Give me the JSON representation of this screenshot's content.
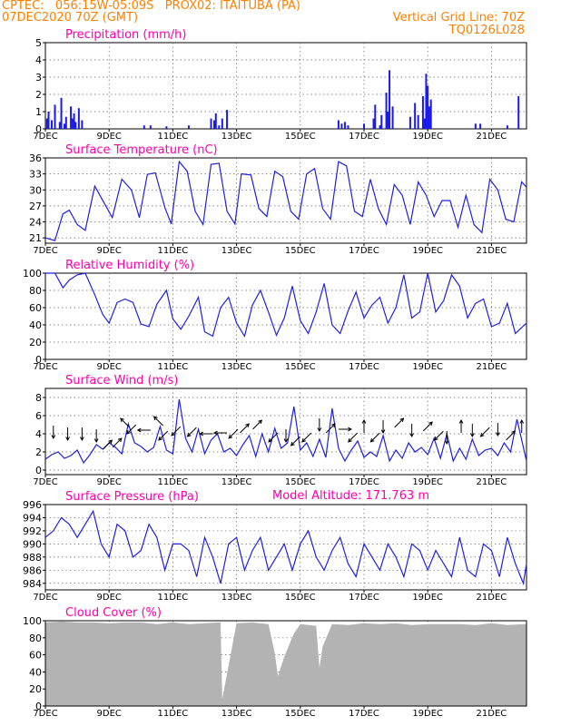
{
  "header": {
    "line1_left": "CPTEC:   056:15W-05:09S   PROX02: ITAITUBA (PA)",
    "line2_left": "07DEC2020 70Z (GMT)",
    "line2_right": "Vertical Grid Line: 70Z",
    "line3_right": "TQ0126L028",
    "model_altitude": "Model Altitude: 171.763 m"
  },
  "colors": {
    "header": "#ff8000",
    "title": "#ff00aa",
    "line": "#2020dd",
    "bars": "#1a1aee",
    "cloud": "#b3b3b3"
  },
  "chart_data": [
    {
      "id": "precip",
      "type": "bar",
      "title": "Precipitation (mm/h)",
      "ylim": [
        0,
        5
      ],
      "yticks": [
        0,
        1,
        2,
        3,
        4,
        5
      ],
      "xticks": [
        "7DEC",
        "9DEC",
        "11DEC",
        "13DEC",
        "15DEC",
        "17DEC",
        "19DEC",
        "21DEC"
      ],
      "xtick_days": [
        7,
        9,
        11,
        13,
        15,
        17,
        19,
        21
      ],
      "xlim_days": [
        7,
        22.1
      ],
      "x_days": [
        7.05,
        7.1,
        7.2,
        7.3,
        7.45,
        7.5,
        7.6,
        7.65,
        7.8,
        7.85,
        7.9,
        7.95,
        8.05,
        8.15,
        10.1,
        10.3,
        10.8,
        11.5,
        12.2,
        12.3,
        12.35,
        12.45,
        12.55,
        12.7,
        16.2,
        16.3,
        16.4,
        16.5,
        17.0,
        17.3,
        17.35,
        17.5,
        17.55,
        17.7,
        17.75,
        17.8,
        17.9,
        18.45,
        18.6,
        18.7,
        18.85,
        18.9,
        18.95,
        19.0,
        19.05,
        19.1,
        20.5,
        20.65,
        21.5,
        21.85
      ],
      "values": [
        0.6,
        1.0,
        0.5,
        1.4,
        0.4,
        1.8,
        0.3,
        0.7,
        1.3,
        0.6,
        0.9,
        0.4,
        1.2,
        0.5,
        0.2,
        0.2,
        0.15,
        0.2,
        0.6,
        0.5,
        0.9,
        0.2,
        0.6,
        1.1,
        0.5,
        0.3,
        0.4,
        0.2,
        0.3,
        0.6,
        1.4,
        0.2,
        0.8,
        2.1,
        1.0,
        3.4,
        1.3,
        0.7,
        1.5,
        0.8,
        1.9,
        0.6,
        3.2,
        2.5,
        1.3,
        1.7,
        0.3,
        0.3,
        0.2,
        1.9
      ]
    },
    {
      "id": "temp",
      "type": "line",
      "title": "Surface Temperature (nC)",
      "ylim": [
        20,
        36
      ],
      "yticks": [
        21,
        24,
        27,
        30,
        33,
        36
      ],
      "xticks": [
        "7DEC",
        "9DEC",
        "11DEC",
        "13DEC",
        "15DEC",
        "17DEC",
        "19DEC",
        "21DEC"
      ],
      "xtick_days": [
        7,
        9,
        11,
        13,
        15,
        17,
        19,
        21
      ],
      "xlim_days": [
        7,
        22.1
      ],
      "x_days": [
        7.0,
        7.3,
        7.55,
        7.75,
        8.0,
        8.25,
        8.55,
        8.85,
        9.1,
        9.4,
        9.7,
        9.95,
        10.2,
        10.45,
        10.75,
        10.95,
        11.2,
        11.45,
        11.7,
        11.95,
        12.2,
        12.45,
        12.7,
        12.95,
        13.15,
        13.45,
        13.7,
        13.95,
        14.2,
        14.45,
        14.7,
        14.95,
        15.2,
        15.45,
        15.7,
        15.95,
        16.2,
        16.45,
        16.7,
        16.95,
        17.2,
        17.45,
        17.7,
        17.95,
        18.2,
        18.45,
        18.7,
        18.95,
        19.2,
        19.45,
        19.7,
        19.95,
        20.2,
        20.45,
        20.7,
        20.95,
        21.2,
        21.45,
        21.7,
        21.95,
        22.1
      ],
      "values": [
        21.0,
        20.5,
        25.5,
        26.2,
        23.5,
        22.4,
        30.7,
        27.5,
        24.8,
        32.0,
        30.0,
        24.8,
        32.9,
        33.2,
        26.7,
        23.6,
        35.3,
        33.5,
        26.0,
        23.5,
        34.8,
        35.0,
        26.0,
        23.6,
        33.0,
        32.8,
        26.5,
        25.0,
        33.5,
        32.5,
        26.0,
        24.5,
        33.0,
        34.0,
        26.5,
        24.5,
        35.3,
        34.5,
        26.0,
        25.0,
        32.0,
        26.5,
        23.5,
        31.0,
        29.0,
        23.5,
        31.5,
        29.0,
        25.0,
        28.0,
        28.0,
        23.0,
        29.0,
        23.5,
        22.0,
        32.0,
        30.0,
        24.5,
        24.0,
        31.5,
        30.5
      ]
    },
    {
      "id": "rh",
      "type": "line",
      "title": "Relative Humidity (%)",
      "ylim": [
        0,
        100
      ],
      "yticks": [
        0,
        20,
        40,
        60,
        80,
        100
      ],
      "xticks": [
        "7DEC",
        "9DEC",
        "11DEC",
        "13DEC",
        "15DEC",
        "17DEC",
        "19DEC",
        "21DEC"
      ],
      "xtick_days": [
        7,
        9,
        11,
        13,
        15,
        17,
        19,
        21
      ],
      "xlim_days": [
        7,
        22.1
      ],
      "x_days": [
        7.0,
        7.3,
        7.55,
        7.75,
        8.0,
        8.25,
        8.55,
        8.8,
        9.0,
        9.25,
        9.5,
        9.75,
        10.0,
        10.25,
        10.5,
        10.8,
        11.0,
        11.25,
        11.5,
        11.8,
        12.0,
        12.25,
        12.5,
        12.75,
        13.0,
        13.25,
        13.5,
        13.75,
        14.0,
        14.25,
        14.5,
        14.75,
        15.0,
        15.25,
        15.5,
        15.75,
        16.0,
        16.25,
        16.5,
        16.75,
        17.0,
        17.25,
        17.5,
        17.75,
        18.0,
        18.25,
        18.5,
        18.75,
        19.0,
        19.25,
        19.5,
        19.75,
        20.0,
        20.25,
        20.5,
        20.75,
        21.0,
        21.25,
        21.5,
        21.75,
        22.1
      ],
      "values": [
        100,
        100,
        83,
        92,
        98,
        100,
        75,
        52,
        42,
        66,
        70,
        66,
        41,
        38,
        64,
        80,
        47,
        35,
        50,
        72,
        32,
        27,
        60,
        72,
        42,
        27,
        63,
        80,
        55,
        28,
        48,
        85,
        45,
        30,
        55,
        88,
        40,
        30,
        56,
        78,
        48,
        63,
        72,
        42,
        60,
        98,
        48,
        55,
        100,
        55,
        68,
        98,
        85,
        48,
        65,
        70,
        38,
        42,
        65,
        30,
        42
      ]
    },
    {
      "id": "wind",
      "type": "line",
      "title": "Surface Wind (m/s)",
      "ylim": [
        -0.5,
        9
      ],
      "yticks": [
        0,
        2,
        4,
        6,
        8
      ],
      "xticks": [
        "7DEC",
        "9DEC",
        "11DEC",
        "13DEC",
        "15DEC",
        "17DEC",
        "19DEC",
        "21DEC"
      ],
      "xtick_days": [
        7,
        9,
        11,
        13,
        15,
        17,
        19,
        21
      ],
      "xlim_days": [
        7,
        22.1
      ],
      "x_days": [
        7.0,
        7.2,
        7.4,
        7.6,
        7.8,
        8.0,
        8.2,
        8.4,
        8.6,
        8.8,
        9.0,
        9.2,
        9.4,
        9.6,
        9.8,
        10.0,
        10.2,
        10.4,
        10.6,
        10.8,
        11.0,
        11.2,
        11.4,
        11.6,
        11.8,
        12.0,
        12.2,
        12.4,
        12.6,
        12.8,
        13.0,
        13.2,
        13.4,
        13.6,
        13.8,
        14.0,
        14.2,
        14.4,
        14.6,
        14.8,
        15.0,
        15.2,
        15.4,
        15.6,
        15.8,
        16.0,
        16.2,
        16.4,
        16.6,
        16.8,
        17.0,
        17.2,
        17.4,
        17.6,
        17.8,
        18.0,
        18.2,
        18.4,
        18.6,
        18.8,
        19.0,
        19.2,
        19.4,
        19.6,
        19.8,
        20.0,
        20.2,
        20.4,
        20.6,
        20.8,
        21.0,
        21.2,
        21.4,
        21.6,
        21.8,
        22.1
      ],
      "values": [
        1.2,
        1.7,
        2.0,
        1.3,
        1.6,
        2.2,
        0.8,
        1.7,
        2.8,
        2.3,
        3.0,
        2.5,
        1.8,
        5.1,
        3.0,
        2.6,
        2.0,
        2.5,
        4.8,
        2.2,
        1.8,
        7.8,
        3.5,
        2.0,
        4.5,
        1.8,
        3.3,
        4.0,
        2.0,
        2.4,
        1.6,
        2.8,
        3.8,
        1.5,
        4.0,
        2.0,
        4.6,
        2.4,
        3.0,
        7.0,
        2.2,
        3.0,
        1.5,
        3.4,
        1.4,
        6.8,
        2.4,
        1.0,
        2.2,
        3.2,
        1.4,
        2.0,
        1.5,
        3.8,
        1.0,
        2.2,
        1.3,
        3.0,
        2.0,
        2.5,
        1.7,
        3.5,
        1.3,
        4.0,
        1.0,
        2.4,
        1.2,
        3.4,
        1.6,
        2.2,
        2.4,
        1.6,
        3.0,
        2.0,
        5.6,
        1.0
      ],
      "arrows": [
        {
          "day": 7.25,
          "level": 4.2,
          "dir": "s"
        },
        {
          "day": 7.7,
          "level": 4.0,
          "dir": "s"
        },
        {
          "day": 8.15,
          "level": 4.0,
          "dir": "s"
        },
        {
          "day": 8.6,
          "level": 3.8,
          "dir": "s"
        },
        {
          "day": 8.95,
          "level": 2.8,
          "dir": "ne"
        },
        {
          "day": 9.25,
          "level": 3.0,
          "dir": "ne"
        },
        {
          "day": 9.5,
          "level": 5.2,
          "dir": "nw"
        },
        {
          "day": 9.7,
          "level": 4.5,
          "dir": "sw"
        },
        {
          "day": 10.1,
          "level": 4.4,
          "dir": "w"
        },
        {
          "day": 10.55,
          "level": 5.4,
          "dir": "nw"
        },
        {
          "day": 10.7,
          "level": 3.8,
          "dir": "sw"
        },
        {
          "day": 11.1,
          "level": 4.3,
          "dir": "sw"
        },
        {
          "day": 11.6,
          "level": 4.2,
          "dir": "sw"
        },
        {
          "day": 12.05,
          "level": 4.0,
          "dir": "w"
        },
        {
          "day": 12.5,
          "level": 4.1,
          "dir": "w"
        },
        {
          "day": 12.9,
          "level": 4.0,
          "dir": "sw"
        },
        {
          "day": 13.25,
          "level": 4.6,
          "dir": "ne"
        },
        {
          "day": 13.65,
          "level": 5.0,
          "dir": "ne"
        },
        {
          "day": 14.15,
          "level": 3.6,
          "dir": "sw"
        },
        {
          "day": 14.55,
          "level": 3.8,
          "dir": "s"
        },
        {
          "day": 14.85,
          "level": 3.2,
          "dir": "sw"
        },
        {
          "day": 15.2,
          "level": 3.6,
          "dir": "sw"
        },
        {
          "day": 15.6,
          "level": 5.0,
          "dir": "s"
        },
        {
          "day": 15.95,
          "level": 4.6,
          "dir": "ne"
        },
        {
          "day": 16.4,
          "level": 4.5,
          "dir": "e"
        },
        {
          "day": 16.65,
          "level": 3.6,
          "dir": "sw"
        },
        {
          "day": 17.0,
          "level": 4.8,
          "dir": "n"
        },
        {
          "day": 17.35,
          "level": 3.6,
          "dir": "sw"
        },
        {
          "day": 17.6,
          "level": 4.8,
          "dir": "s"
        },
        {
          "day": 18.1,
          "level": 5.2,
          "dir": "ne"
        },
        {
          "day": 18.5,
          "level": 4.4,
          "dir": "s"
        },
        {
          "day": 19.0,
          "level": 4.8,
          "dir": "ne"
        },
        {
          "day": 19.35,
          "level": 3.8,
          "dir": "sw"
        },
        {
          "day": 19.6,
          "level": 3.6,
          "dir": "s"
        },
        {
          "day": 20.05,
          "level": 4.8,
          "dir": "n"
        },
        {
          "day": 20.4,
          "level": 4.4,
          "dir": "s"
        },
        {
          "day": 20.8,
          "level": 4.2,
          "dir": "sw"
        },
        {
          "day": 21.2,
          "level": 4.5,
          "dir": "s"
        },
        {
          "day": 21.6,
          "level": 3.8,
          "dir": "ne"
        },
        {
          "day": 21.95,
          "level": 4.8,
          "dir": "n"
        }
      ]
    },
    {
      "id": "pres",
      "type": "line",
      "title": "Surface Pressure (hPa)",
      "ylim": [
        983,
        996
      ],
      "yticks": [
        984,
        986,
        988,
        990,
        992,
        994,
        996
      ],
      "xticks": [
        "7DEC",
        "9DEC",
        "11DEC",
        "13DEC",
        "15DEC",
        "17DEC",
        "19DEC",
        "21DEC"
      ],
      "xtick_days": [
        7,
        9,
        11,
        13,
        15,
        17,
        19,
        21
      ],
      "xlim_days": [
        7,
        22.1
      ],
      "x_days": [
        7.0,
        7.25,
        7.5,
        7.75,
        8.0,
        8.25,
        8.5,
        8.75,
        9.0,
        9.25,
        9.5,
        9.75,
        10.0,
        10.25,
        10.5,
        10.75,
        11.0,
        11.25,
        11.5,
        11.75,
        12.0,
        12.25,
        12.5,
        12.75,
        13.0,
        13.25,
        13.5,
        13.75,
        14.0,
        14.25,
        14.5,
        14.75,
        15.0,
        15.25,
        15.5,
        15.75,
        16.0,
        16.25,
        16.5,
        16.75,
        17.0,
        17.25,
        17.5,
        17.75,
        18.0,
        18.25,
        18.5,
        18.75,
        19.0,
        19.25,
        19.5,
        19.75,
        20.0,
        20.25,
        20.5,
        20.75,
        21.0,
        21.25,
        21.5,
        21.75,
        22.0,
        22.1
      ],
      "values": [
        991,
        992,
        994,
        993,
        991,
        993,
        995,
        990,
        988,
        993,
        992,
        988,
        989,
        993,
        991,
        986,
        990,
        990,
        989,
        985,
        991,
        988,
        984,
        990,
        991,
        986,
        989,
        991,
        986,
        988,
        990,
        986,
        990,
        992,
        988,
        986,
        989,
        991,
        987,
        985,
        990,
        988,
        986,
        990,
        988,
        985,
        990,
        989,
        986,
        989,
        987,
        985,
        991,
        986,
        985,
        990,
        989,
        985,
        991,
        987,
        984,
        987
      ]
    },
    {
      "id": "cloud",
      "type": "area",
      "title": "Cloud Cover (%)",
      "ylim": [
        0,
        100
      ],
      "yticks": [
        0,
        20,
        40,
        60,
        80,
        100
      ],
      "xticks": [
        "7DEC",
        "9DEC",
        "11DEC",
        "13DEC",
        "15DEC",
        "17DEC",
        "19DEC",
        "21DEC"
      ],
      "xtick_days": [
        7,
        9,
        11,
        13,
        15,
        17,
        19,
        21
      ],
      "xlim_days": [
        7,
        22.1
      ],
      "x_days": [
        7.0,
        7.5,
        8.0,
        8.5,
        9.0,
        9.5,
        10.0,
        10.5,
        11.0,
        11.5,
        12.0,
        12.5,
        12.55,
        13.0,
        13.5,
        14.0,
        14.2,
        14.3,
        14.5,
        14.8,
        15.0,
        15.5,
        15.6,
        15.7,
        16.0,
        16.5,
        17.0,
        17.5,
        18.0,
        18.5,
        19.0,
        19.5,
        20.0,
        20.5,
        21.0,
        21.5,
        22.0,
        22.1
      ],
      "values": [
        98,
        99,
        98,
        98,
        97,
        98,
        98,
        96,
        98,
        96,
        97,
        98,
        8,
        97,
        98,
        96,
        62,
        35,
        58,
        85,
        96,
        94,
        45,
        70,
        96,
        95,
        97,
        96,
        97,
        95,
        96,
        96,
        96,
        95,
        97,
        95,
        96,
        96
      ]
    }
  ]
}
